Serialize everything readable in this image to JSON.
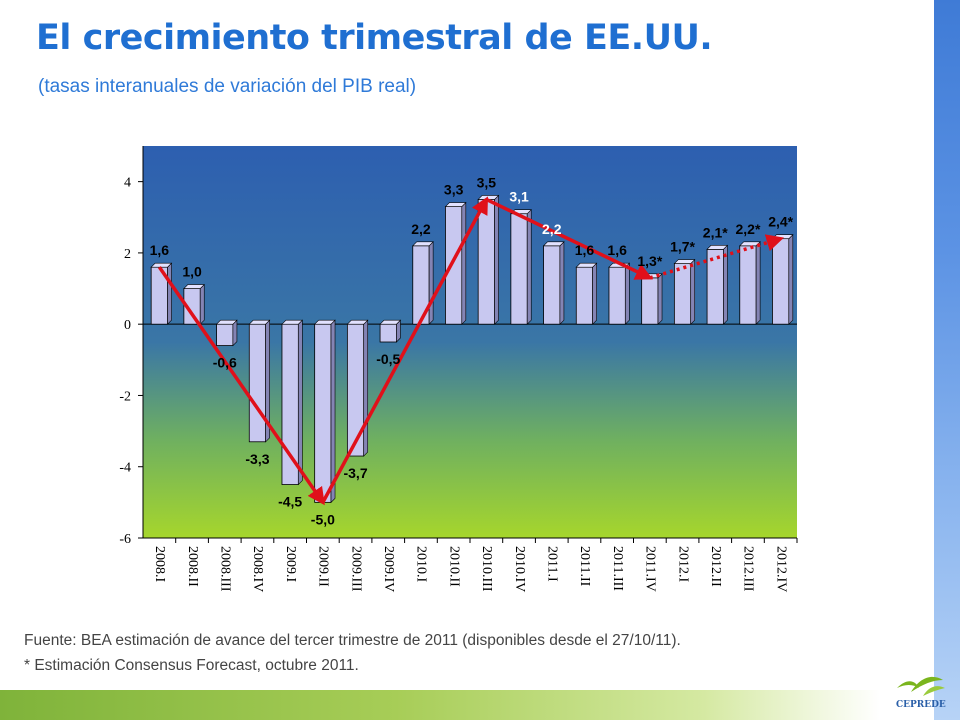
{
  "slide": {
    "title": "El crecimiento trimestral de EE.UU.",
    "subtitle": "(tasas interanuales de variación del PIB real)",
    "footnote_source": "Fuente: BEA estimación de avance del tercer  trimestre de 2011 (disponibles desde el 27/10/11).",
    "footnote_estimate": "* Estimación Consensus Forecast, octubre 2011.",
    "logo_text": "CEPREDE"
  },
  "colors": {
    "title": "#1f6fd1",
    "bar_fill": "#c8c8f0",
    "trend_arrow": "#e0101a",
    "plot_top": "#2d5fb0",
    "plot_bottom": "#a6d62c"
  },
  "chart_data": {
    "type": "bar",
    "title": "",
    "xlabel": "",
    "ylabel": "",
    "ylim": [
      -6,
      5
    ],
    "yticks": [
      -6,
      -4,
      -2,
      0,
      2,
      4
    ],
    "grid": false,
    "legend": "none",
    "categories": [
      "2008.I",
      "2008.II",
      "2008.III",
      "2008.IV",
      "2009.I",
      "2009.II",
      "2009.III",
      "2009.IV",
      "2010.I",
      "2010.II",
      "2010.III",
      "2010.IV",
      "2011.I",
      "2011.II",
      "2011.III",
      "2011.IV",
      "2012.I",
      "2012.II",
      "2012.III",
      "2012.IV"
    ],
    "values": [
      1.6,
      1.0,
      -0.6,
      -3.3,
      -4.5,
      -5.0,
      -3.7,
      -0.5,
      2.2,
      3.3,
      3.5,
      3.1,
      2.2,
      1.6,
      1.6,
      1.3,
      1.7,
      2.1,
      2.2,
      2.4
    ],
    "data_labels": [
      "1,6",
      "1,0",
      "-0,6",
      "-3,3",
      "-4,5",
      "-5,0",
      "-3,7",
      "-0,5",
      "2,2",
      "3,3",
      "3,5",
      "3,1",
      "2,2",
      "1,6",
      "1,6",
      "1,3*",
      "1,7*",
      "2,1*",
      "2,2*",
      "2,4*"
    ],
    "annotations": [
      {
        "type": "solid-arrow",
        "from": "2008.I",
        "to": "2009.II"
      },
      {
        "type": "solid-arrow",
        "from": "2009.II",
        "to": "2010.III"
      },
      {
        "type": "solid-arrow",
        "from": "2010.III",
        "to": "2011.IV"
      },
      {
        "type": "dotted-arrow",
        "from": "2011.IV",
        "to": "2012.IV"
      }
    ]
  }
}
